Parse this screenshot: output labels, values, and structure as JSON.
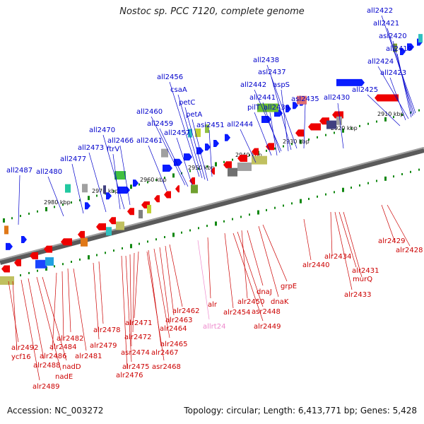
{
  "title": "Nostoc sp. PCC 7120, complete genome",
  "accession": "Accession: NC_003272",
  "stats": "Topology: circular; Length: 6,413,771 bp; Genes: 5,428",
  "colors": {
    "forward_label": "#0000cc",
    "reverse_label": "#cc0000",
    "rna_label": "#ee88cc",
    "forward_gene": "#0a1cff",
    "reverse_gene": "#ee0000",
    "tick": "#118811"
  },
  "kbp_marks": [
    "2910 kbp",
    "2920 kbp",
    "2930 kbp",
    "2940 kbp",
    "2950 kbp",
    "2960 kbp",
    "2970 kbp",
    "2980 kbp"
  ],
  "forward_labels": [
    "all2422",
    "all2421",
    "asl2420",
    "all2419",
    "all2424",
    "all2423",
    "all2425",
    "all2430",
    "all2438",
    "asl2437",
    "all2442",
    "aspS",
    "all2441",
    "pilT",
    "all2439",
    "asl2435",
    "all2444",
    "all2456",
    "csaA",
    "petC",
    "petA",
    "asl2451",
    "all2460",
    "all2459",
    "all2457",
    "all2461",
    "all2470",
    "all2466",
    "ftrV",
    "all2473",
    "all2477",
    "all2480",
    "all2487"
  ],
  "reverse_labels": [
    "alr2429",
    "alr2428",
    "alr2434",
    "alr2431",
    "murQ",
    "alr2433",
    "alr2440",
    "grpE",
    "dnaK",
    "dnaJ",
    "alr2450",
    "asr2448",
    "alr2449",
    "alr2454",
    "alr",
    "alr2462",
    "alr2463",
    "alr2464",
    "alr2465",
    "alr2471",
    "alr2467",
    "asr2468",
    "alr2472",
    "asr2474",
    "alr2475",
    "alr2476",
    "alr2478",
    "alr2479",
    "alr2482",
    "alr2481",
    "alr2484",
    "alr2486",
    "alr2492",
    "ycf16",
    "alr2488",
    "nadD",
    "nadE",
    "alr2489"
  ],
  "rna_labels": [
    "allrt24"
  ]
}
